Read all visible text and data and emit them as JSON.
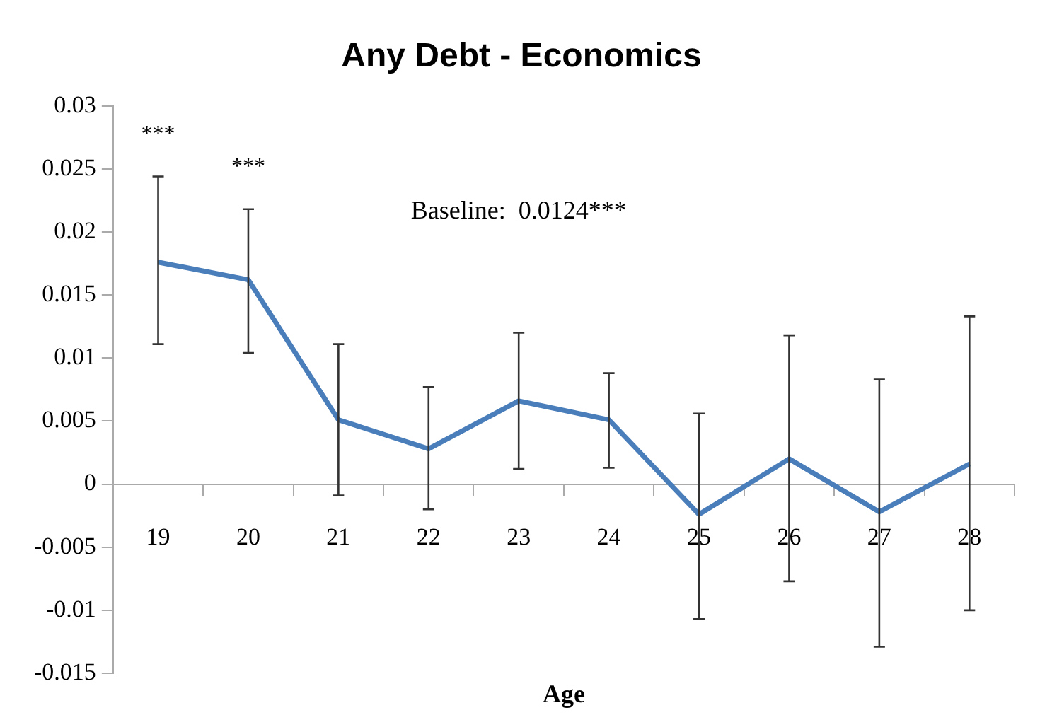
{
  "chart_data": {
    "type": "line",
    "title": "Any Debt - Economics",
    "xlabel": "Age",
    "categories": [
      "19",
      "20",
      "21",
      "22",
      "23",
      "24",
      "25",
      "26",
      "27",
      "28"
    ],
    "series": [
      {
        "color": "#4a7ebb",
        "values": [
          0.0176,
          0.0162,
          0.0051,
          0.0028,
          0.0066,
          0.0051,
          -0.0024,
          0.002,
          -0.0022,
          0.0016
        ],
        "errors": [
          [
            0.0111,
            0.0244
          ],
          [
            0.0104,
            0.0218
          ],
          [
            -0.0009,
            0.0111
          ],
          [
            -0.002,
            0.0077
          ],
          [
            0.0012,
            0.012
          ],
          [
            0.0013,
            0.0088
          ],
          [
            -0.0107,
            0.0056
          ],
          [
            -0.0077,
            0.0118
          ],
          [
            -0.0129,
            0.0083
          ],
          [
            -0.01,
            0.0133
          ]
        ]
      }
    ],
    "ylim": [
      -0.015,
      0.03
    ],
    "yticks": [
      -0.015,
      -0.01,
      -0.005,
      0,
      0.005,
      0.01,
      0.015,
      0.02,
      0.025,
      0.03
    ],
    "annotations": [
      "***",
      "***",
      "Baseline:  0.0124***"
    ],
    "grid": false,
    "legend": false,
    "marker": "none",
    "line_style": "solid"
  }
}
